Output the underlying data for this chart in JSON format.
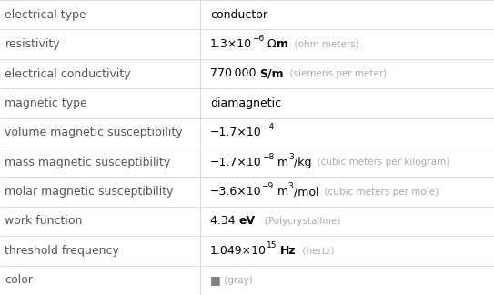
{
  "rows": [
    {
      "label": "electrical type",
      "value_parts": [
        {
          "text": "conductor",
          "style": "normal",
          "size": "main"
        }
      ]
    },
    {
      "label": "resistivity",
      "value_parts": [
        {
          "text": "1.3×10",
          "style": "normal",
          "size": "main"
        },
        {
          "text": "−6",
          "style": "super",
          "size": "super"
        },
        {
          "text": " Ω",
          "style": "normal",
          "size": "main"
        },
        {
          "text": "m",
          "style": "bold",
          "size": "main"
        },
        {
          "text": "  (ohm meters)",
          "style": "gray",
          "size": "small"
        }
      ]
    },
    {
      "label": "electrical conductivity",
      "value_parts": [
        {
          "text": "770 000 ",
          "style": "normal",
          "size": "main"
        },
        {
          "text": "S/m",
          "style": "bold",
          "size": "main"
        },
        {
          "text": "  (siemens per meter)",
          "style": "gray",
          "size": "small"
        }
      ]
    },
    {
      "label": "magnetic type",
      "value_parts": [
        {
          "text": "diamagnetic",
          "style": "normal",
          "size": "main"
        }
      ]
    },
    {
      "label": "volume magnetic susceptibility",
      "value_parts": [
        {
          "text": "−1.7×10",
          "style": "normal",
          "size": "main"
        },
        {
          "text": "−4",
          "style": "super",
          "size": "super"
        }
      ]
    },
    {
      "label": "mass magnetic susceptibility",
      "value_parts": [
        {
          "text": "−1.7×10",
          "style": "normal",
          "size": "main"
        },
        {
          "text": "−8",
          "style": "super",
          "size": "super"
        },
        {
          "text": " m",
          "style": "normal",
          "size": "main"
        },
        {
          "text": "3",
          "style": "super",
          "size": "super"
        },
        {
          "text": "/kg",
          "style": "normal",
          "size": "main"
        },
        {
          "text": "  (cubic meters per kilogram)",
          "style": "gray",
          "size": "small"
        }
      ]
    },
    {
      "label": "molar magnetic susceptibility",
      "value_parts": [
        {
          "text": "−3.6×10",
          "style": "normal",
          "size": "main"
        },
        {
          "text": "−9",
          "style": "super",
          "size": "super"
        },
        {
          "text": " m",
          "style": "normal",
          "size": "main"
        },
        {
          "text": "3",
          "style": "super",
          "size": "super"
        },
        {
          "text": "/mol",
          "style": "normal",
          "size": "main"
        },
        {
          "text": "  (cubic meters per mole)",
          "style": "gray",
          "size": "small"
        }
      ]
    },
    {
      "label": "work function",
      "value_parts": [
        {
          "text": "4.34 ",
          "style": "normal",
          "size": "main"
        },
        {
          "text": "eV",
          "style": "bold",
          "size": "main"
        },
        {
          "text": "   (Polycrystalline)",
          "style": "gray",
          "size": "small"
        }
      ]
    },
    {
      "label": "threshold frequency",
      "value_parts": [
        {
          "text": "1.049×10",
          "style": "normal",
          "size": "main"
        },
        {
          "text": "15",
          "style": "super",
          "size": "super"
        },
        {
          "text": " ",
          "style": "normal",
          "size": "main"
        },
        {
          "text": "Hz",
          "style": "bold",
          "size": "main"
        },
        {
          "text": "  (hertz)",
          "style": "gray",
          "size": "small"
        }
      ]
    },
    {
      "label": "color",
      "value_parts": [
        {
          "text": "■",
          "style": "color_swatch",
          "size": "main",
          "color": "#808080"
        },
        {
          "text": " (gray)",
          "style": "gray",
          "size": "small"
        }
      ]
    }
  ],
  "col_split": 0.405,
  "bg_color": "#ffffff",
  "label_color": "#555555",
  "value_color": "#000000",
  "gray_color": "#aaaaaa",
  "line_color": "#dddddd",
  "main_fontsize": 9.0,
  "small_fontsize": 7.5,
  "super_fontsize": 6.5,
  "font_family": "DejaVu Sans"
}
